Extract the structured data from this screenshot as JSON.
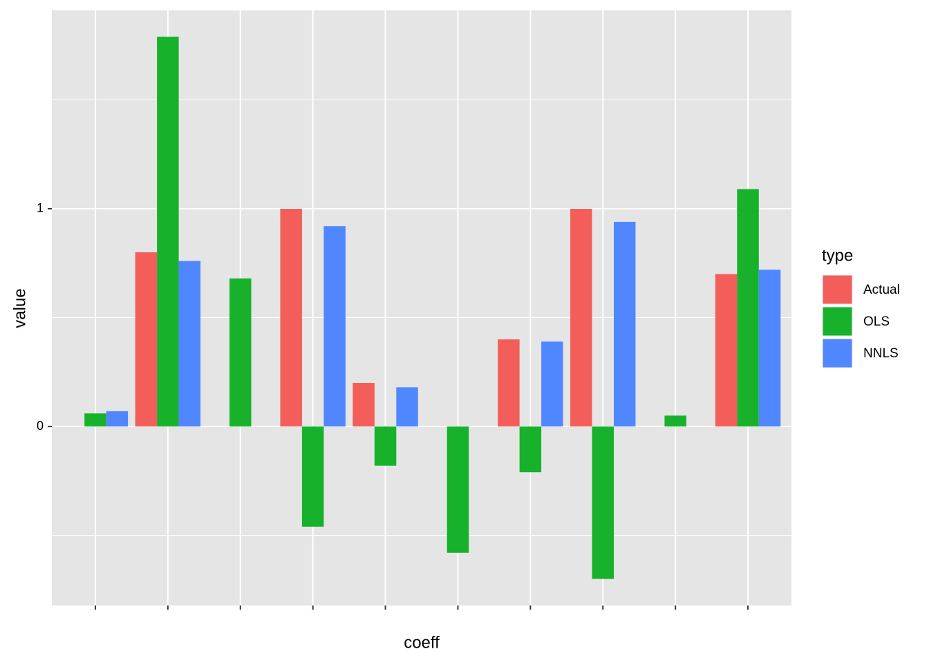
{
  "chart_data": {
    "type": "bar",
    "x_label": "coeff",
    "y_label": "value",
    "categories": [
      null,
      null,
      null,
      null,
      null,
      null,
      null,
      null,
      null,
      null
    ],
    "series": [
      {
        "name": "Actual",
        "color": "#F35E5A",
        "values": [
          0,
          0.8,
          0,
          1.0,
          0.2,
          0,
          0.4,
          1.0,
          0,
          0.7
        ]
      },
      {
        "name": "OLS",
        "color": "#17B12B",
        "values": [
          0.06,
          1.79,
          0.68,
          -0.46,
          -0.18,
          -0.58,
          -0.21,
          -0.7,
          0.05,
          1.09
        ]
      },
      {
        "name": "NNLS",
        "color": "#5087FF",
        "values": [
          0.07,
          0.76,
          0,
          0.92,
          0.18,
          0,
          0.39,
          0.94,
          0,
          0.72
        ]
      }
    ],
    "ylim": [
      -0.822,
      1.911
    ],
    "yticks": [
      0,
      1
    ],
    "minor_yticks": [
      -0.5,
      0.5,
      1.5
    ],
    "grid": true,
    "legend_title": "type",
    "legend_position": "right"
  }
}
